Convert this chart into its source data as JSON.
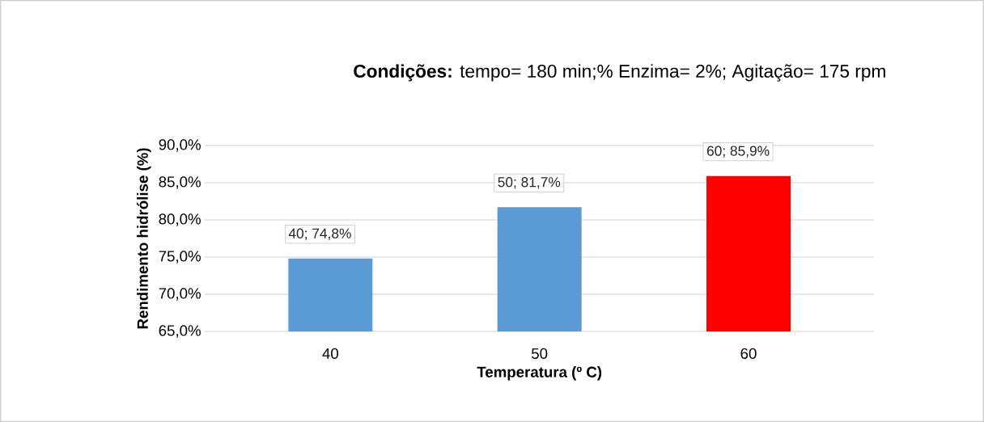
{
  "chart_data": {
    "type": "bar",
    "title": "**Condições:** tempo= 180 min;% Enzima= 2%; Agitação= 175 rpm",
    "xlabel": "Temperatura (º C)",
    "ylabel": "Rendimento hidrólise (%)",
    "categories": [
      "40",
      "50",
      "60"
    ],
    "values": [
      74.8,
      81.7,
      85.9
    ],
    "colors": [
      "#5b9bd5",
      "#5b9bd5",
      "#ff0000"
    ],
    "value_labels": [
      "40; 74,8%",
      "50; 81,7%",
      "60; 85,9%"
    ],
    "ylim": [
      65,
      90
    ],
    "yticks": [
      {
        "value": 65,
        "label": "65,0%"
      },
      {
        "value": 70,
        "label": "70,0%"
      },
      {
        "value": 75,
        "label": "75,0%"
      },
      {
        "value": 80,
        "label": "80,0%"
      },
      {
        "value": 85,
        "label": "85,0%"
      },
      {
        "value": 90,
        "label": "90,0%"
      }
    ],
    "grid": "y"
  }
}
